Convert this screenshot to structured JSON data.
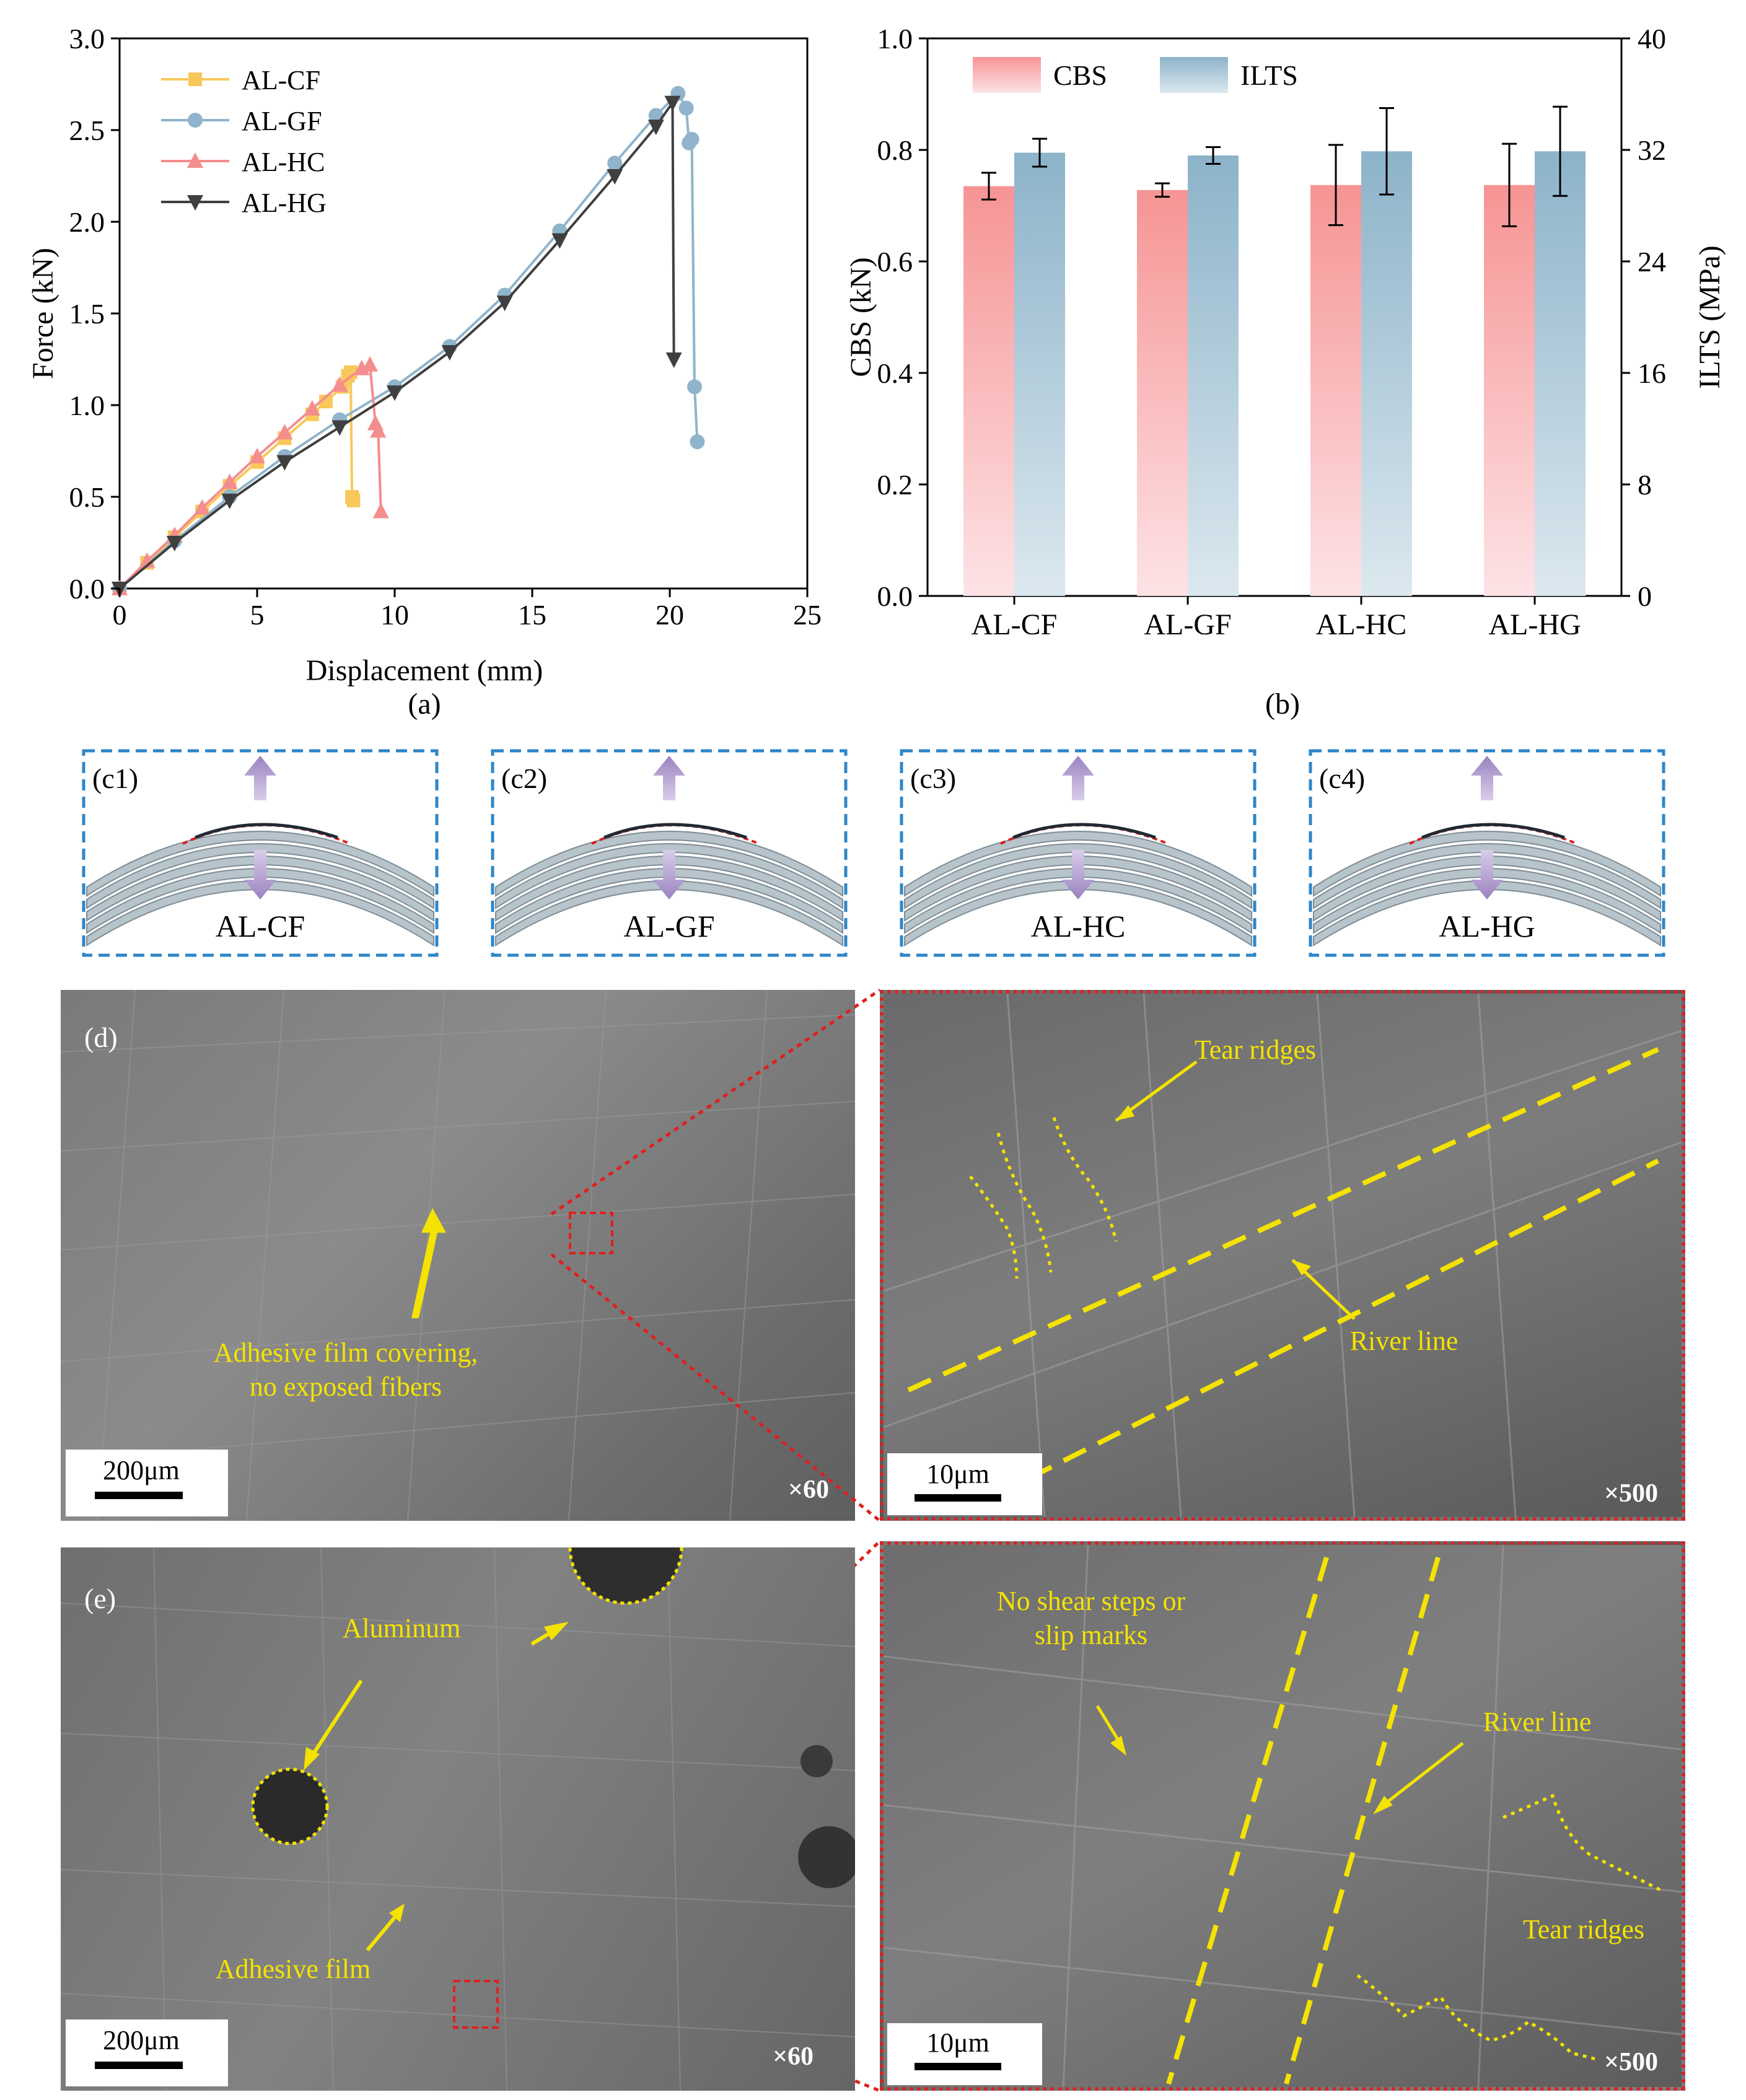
{
  "colors": {
    "cf": "#F9C85A",
    "gf": "#8FB4CC",
    "hc": "#F48E8E",
    "hg": "#3F3F3F",
    "cbs_top": "#F69494",
    "cbs_bottom": "#FDE3E6",
    "ilts_top": "#8CB3C9",
    "ilts_bottom": "#DCE8EF",
    "annot": "#F4E300",
    "dashed_blue": "#2E86C9",
    "dashed_red": "#E01F1F"
  },
  "panel_a": {
    "caption": "(a)",
    "chart_data": {
      "type": "line",
      "xlabel": "Displacement (mm)",
      "ylabel": "Force (kN)",
      "xlim": [
        0,
        25
      ],
      "ylim": [
        0,
        3.0
      ],
      "xticks": [
        "0",
        "5",
        "10",
        "15",
        "20",
        "25"
      ],
      "yticks": [
        "0.0",
        "0.5",
        "1.0",
        "1.5",
        "2.0",
        "2.5",
        "3.0"
      ],
      "legend": "top-left",
      "series": [
        {
          "name": "AL-CF",
          "marker": "square",
          "x": [
            0,
            1,
            2,
            3,
            4,
            5,
            6,
            7,
            7.5,
            8.1,
            8.3,
            8.4,
            8.45,
            8.5
          ],
          "y": [
            0,
            0.14,
            0.28,
            0.42,
            0.56,
            0.69,
            0.82,
            0.95,
            1.02,
            1.1,
            1.16,
            1.18,
            0.5,
            0.48
          ]
        },
        {
          "name": "AL-GF",
          "marker": "circle",
          "x": [
            0,
            2,
            4,
            6,
            8,
            10,
            12,
            14,
            16,
            18,
            19.5,
            20.3,
            20.6,
            20.7,
            20.8,
            20.9,
            21.0
          ],
          "y": [
            0,
            0.26,
            0.5,
            0.72,
            0.92,
            1.1,
            1.32,
            1.6,
            1.95,
            2.32,
            2.58,
            2.7,
            2.62,
            2.43,
            2.45,
            1.1,
            0.8
          ]
        },
        {
          "name": "AL-HC",
          "marker": "triangle-up",
          "x": [
            0,
            1,
            2,
            3,
            4,
            5,
            6,
            7,
            8,
            8.8,
            9.1,
            9.3,
            9.4,
            9.5
          ],
          "y": [
            0,
            0.15,
            0.29,
            0.44,
            0.58,
            0.72,
            0.85,
            0.98,
            1.11,
            1.2,
            1.22,
            0.9,
            0.86,
            0.42
          ]
        },
        {
          "name": "AL-HG",
          "marker": "triangle-down",
          "x": [
            0,
            2,
            4,
            6,
            8,
            10,
            12,
            14,
            16,
            18,
            19.5,
            20.1,
            20.15
          ],
          "y": [
            0,
            0.25,
            0.48,
            0.69,
            0.88,
            1.07,
            1.29,
            1.56,
            1.9,
            2.25,
            2.52,
            2.65,
            1.25
          ]
        }
      ]
    }
  },
  "panel_b": {
    "caption": "(b)",
    "chart_data": {
      "type": "bar",
      "categories": [
        "AL-CF",
        "AL-GF",
        "AL-HC",
        "AL-HG"
      ],
      "ylabel_left": "CBS (kN)",
      "ylabel_right": "ILTS (MPa)",
      "ylim_left": [
        0,
        1.0
      ],
      "ylim_right": [
        0,
        40
      ],
      "yticks_left": [
        "0.0",
        "0.2",
        "0.4",
        "0.6",
        "0.8",
        "1.0"
      ],
      "yticks_right": [
        "0",
        "8",
        "16",
        "24",
        "32",
        "40"
      ],
      "legend": "top-left",
      "series": [
        {
          "name": "CBS",
          "axis": "left",
          "values": [
            0.735,
            0.728,
            0.737,
            0.737
          ],
          "errors": [
            0.024,
            0.012,
            0.072,
            0.074
          ]
        },
        {
          "name": "ILTS",
          "axis": "right",
          "values": [
            31.8,
            31.6,
            31.9,
            31.9
          ],
          "errors": [
            1.0,
            0.6,
            3.1,
            3.2
          ]
        }
      ]
    }
  },
  "panel_c": [
    {
      "tag": "(c1)",
      "label": "AL-CF"
    },
    {
      "tag": "(c2)",
      "label": "AL-GF"
    },
    {
      "tag": "(c3)",
      "label": "AL-HC"
    },
    {
      "tag": "(c4)",
      "label": "AL-HG"
    }
  ],
  "panel_d": {
    "tag": "(d)",
    "left_annotation_1": "Adhesive film covering,",
    "left_annotation_2": "no exposed fibers",
    "left_scale": "200μm",
    "left_mag": "×60",
    "right_annotation_tear": "Tear ridges",
    "right_annotation_river": "River line",
    "right_scale": "10μm",
    "right_mag": "×500"
  },
  "panel_e": {
    "tag": "(e)",
    "left_annotation_aluminum": "Aluminum",
    "left_annotation_film": "Adhesive film",
    "left_scale": "200μm",
    "left_mag": "×60",
    "right_annotation_noshear_1": "No shear steps or",
    "right_annotation_noshear_2": "slip marks",
    "right_annotation_river": "River line",
    "right_annotation_tear": "Tear ridges",
    "right_scale": "10μm",
    "right_mag": "×500"
  }
}
